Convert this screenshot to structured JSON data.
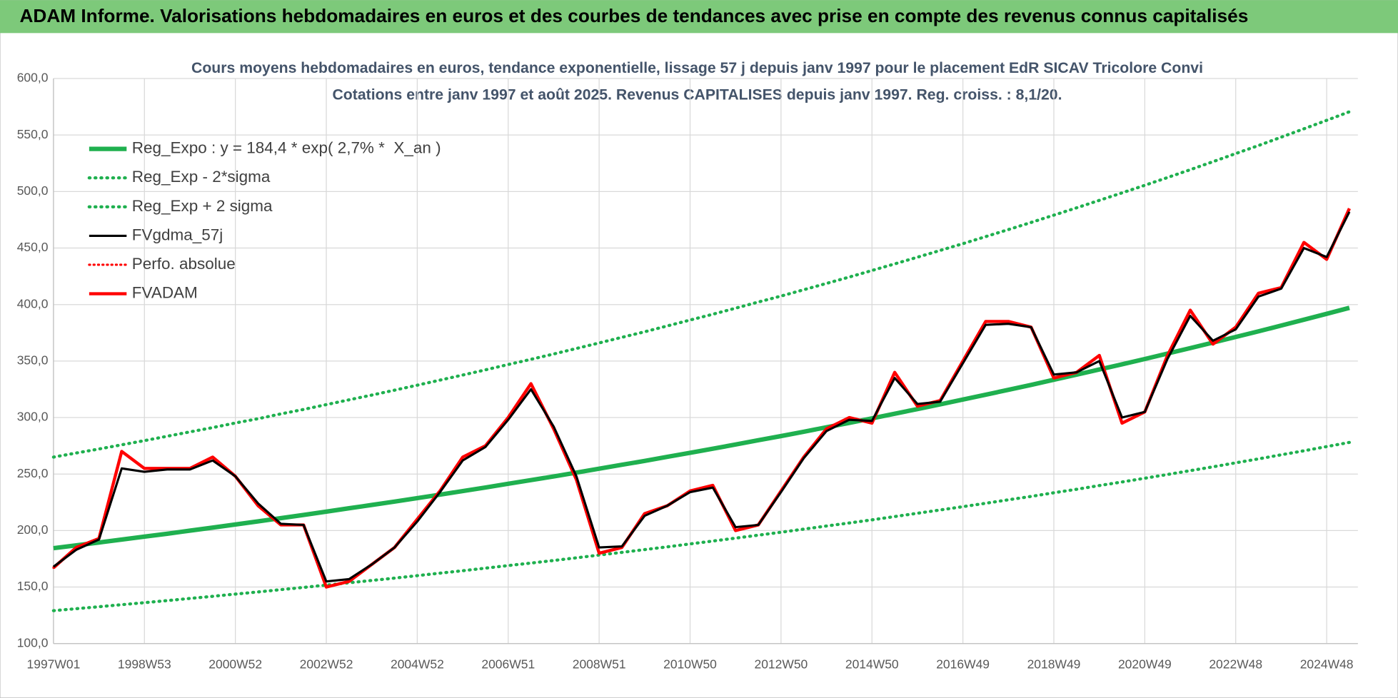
{
  "header": {
    "title": "ADAM Informe. Valorisations hebdomadaires en euros et des courbes de tendances avec prise en compte des revenus connus capitalisés"
  },
  "chart_data": {
    "type": "line",
    "title": "Cours moyens hebdomadaires en euros, tendance exponentielle, lissage 57 j depuis janv 1997 pour le placement EdR SICAV Tricolore Convi",
    "subtitle": "Cotations entre janv 1997 et août 2025. Revenus CAPITALISES depuis janv 1997. Reg. croiss. : 8,1/20.",
    "categories": [
      "1997W01",
      null,
      null,
      null,
      "1998W53",
      null,
      null,
      null,
      "2000W52",
      null,
      null,
      null,
      "2002W52",
      null,
      null,
      null,
      "2004W52",
      null,
      null,
      null,
      "2006W51",
      null,
      null,
      null,
      "2008W51",
      null,
      null,
      null,
      "2010W50",
      null,
      null,
      null,
      "2012W50",
      null,
      null,
      null,
      "2014W50",
      null,
      null,
      null,
      "2016W49",
      null,
      null,
      null,
      "2018W49",
      null,
      null,
      null,
      "2020W49",
      null,
      null,
      null,
      "2022W48",
      null,
      null,
      null,
      "2024W48",
      null
    ],
    "ylim": [
      100,
      600
    ],
    "yticks": [
      {
        "value": 100,
        "label": "100,0"
      },
      {
        "value": 150,
        "label": "150,0"
      },
      {
        "value": 200,
        "label": "200,0"
      },
      {
        "value": 250,
        "label": "250,0"
      },
      {
        "value": 300,
        "label": "300,0"
      },
      {
        "value": 350,
        "label": "350,0"
      },
      {
        "value": 400,
        "label": "400,0"
      },
      {
        "value": 450,
        "label": "450,0"
      },
      {
        "value": 500,
        "label": "500,0"
      },
      {
        "value": 550,
        "label": "550,0"
      },
      {
        "value": 600,
        "label": "600,0"
      }
    ],
    "grid": true,
    "legend": "top-left",
    "series": [
      {
        "name": "Reg_Expo : y = 184,4 * exp( 2,7% *  X_an )",
        "color": "#1fb04f",
        "style": "solid",
        "width": 5,
        "values": [
          184.4,
          186.9,
          189.4,
          192.0,
          194.6,
          197.2,
          199.9,
          202.6,
          205.4,
          208.1,
          211.0,
          213.8,
          216.7,
          219.7,
          222.6,
          225.6,
          228.7,
          231.8,
          234.9,
          238.1,
          241.4,
          244.6,
          247.9,
          251.3,
          254.7,
          258.2,
          261.6,
          265.2,
          268.8,
          272.4,
          276.1,
          279.9,
          283.6,
          287.5,
          291.4,
          295.3,
          299.3,
          303.4,
          307.5,
          311.7,
          315.9,
          320.2,
          324.5,
          328.9,
          333.4,
          337.9,
          342.5,
          347.1,
          351.8,
          356.6,
          361.4,
          366.3,
          371.3,
          376.3,
          381.4,
          386.6,
          391.8,
          397.1
        ]
      },
      {
        "name": "Reg_Exp - 2*sigma",
        "color": "#1fb04f",
        "style": "dotted",
        "width": 3.5,
        "values": [
          129.1,
          130.8,
          132.6,
          134.4,
          136.2,
          138.0,
          139.9,
          141.8,
          143.8,
          145.7,
          147.7,
          149.7,
          151.7,
          153.8,
          155.8,
          157.9,
          160.1,
          162.3,
          164.4,
          166.7,
          169.0,
          171.2,
          173.5,
          175.9,
          178.3,
          180.7,
          183.1,
          185.6,
          188.2,
          190.7,
          193.3,
          195.9,
          198.5,
          201.3,
          204.0,
          206.7,
          209.5,
          212.4,
          215.3,
          218.2,
          221.1,
          224.1,
          227.2,
          230.2,
          233.4,
          236.5,
          239.8,
          243.0,
          246.3,
          249.6,
          253.0,
          256.4,
          259.9,
          263.4,
          267.0,
          270.6,
          274.3,
          278.0
        ]
      },
      {
        "name": "Reg_Exp + 2 sigma",
        "color": "#1fb04f",
        "style": "dotted",
        "width": 3.5,
        "values": [
          265.0,
          268.6,
          272.2,
          275.9,
          279.6,
          283.4,
          287.3,
          291.1,
          295.2,
          299.0,
          303.2,
          307.2,
          311.4,
          315.7,
          319.9,
          324.2,
          328.6,
          333.1,
          337.6,
          342.2,
          346.9,
          351.5,
          356.2,
          361.1,
          366.0,
          371.0,
          375.9,
          381.1,
          386.3,
          391.4,
          396.8,
          402.2,
          407.5,
          413.1,
          418.7,
          424.3,
          430.1,
          436.0,
          441.9,
          447.9,
          453.9,
          460.1,
          466.3,
          472.6,
          479.1,
          485.6,
          492.2,
          498.8,
          505.5,
          512.4,
          519.3,
          526.4,
          533.6,
          540.7,
          548.1,
          555.5,
          563.0,
          570.6
        ]
      },
      {
        "name": "FVgdma_57j",
        "color": "#000000",
        "style": "solid",
        "width": 2.5,
        "values": [
          168,
          183,
          192,
          255,
          252,
          254,
          254,
          262,
          248,
          224,
          206,
          205,
          155,
          157,
          170,
          185,
          208,
          234,
          262,
          274,
          298,
          325,
          292,
          248,
          185,
          186,
          213,
          222,
          234,
          238,
          203,
          205,
          234,
          264,
          288,
          298,
          297,
          335,
          312,
          314,
          348,
          382,
          383,
          380,
          338,
          340,
          350,
          300,
          305,
          352,
          390,
          368,
          378,
          407,
          414,
          450,
          442,
          482
        ]
      },
      {
        "name": "Perfo. absolue",
        "color": "#ff0000",
        "style": "dotted",
        "width": 2.5,
        "values": [
          167,
          185,
          193,
          270,
          255,
          255,
          255,
          265,
          248,
          222,
          205,
          205,
          150,
          155,
          170,
          185,
          210,
          235,
          265,
          275,
          300,
          330,
          290,
          245,
          180,
          185,
          215,
          222,
          235,
          240,
          200,
          205,
          235,
          265,
          290,
          300,
          295,
          340,
          310,
          315,
          350,
          385,
          385,
          380,
          335,
          340,
          355,
          295,
          305,
          355,
          395,
          365,
          380,
          410,
          415,
          455,
          440,
          485
        ]
      },
      {
        "name": "FVADAM",
        "color": "#ff0000",
        "style": "solid",
        "width": 3.5,
        "values": [
          167,
          185,
          193,
          270,
          255,
          255,
          255,
          265,
          248,
          222,
          205,
          205,
          150,
          155,
          170,
          185,
          210,
          235,
          265,
          275,
          300,
          330,
          290,
          245,
          180,
          185,
          215,
          222,
          235,
          240,
          200,
          205,
          235,
          265,
          290,
          300,
          295,
          340,
          310,
          315,
          350,
          385,
          385,
          380,
          335,
          340,
          355,
          295,
          305,
          355,
          395,
          365,
          380,
          410,
          415,
          455,
          440,
          485
        ]
      }
    ]
  }
}
